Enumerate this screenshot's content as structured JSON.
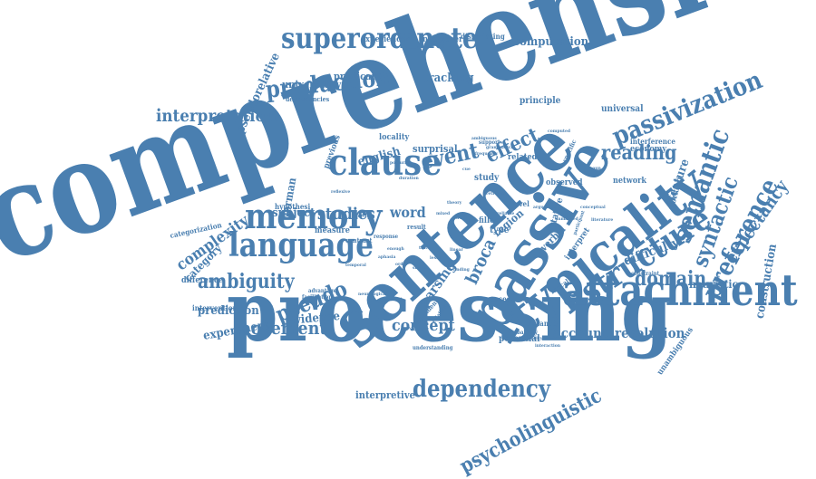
{
  "colors": {
    "word": "#4a7fb0",
    "background": "#ffffff"
  },
  "words": {
    "comprehension": "comprehension",
    "processing": "processing",
    "sentence": "sentence",
    "passive": "passive",
    "typicality": "typicality",
    "attachment": "attachment",
    "memory": "memory",
    "language": "language",
    "clause": "clause",
    "superordinate": "superordinate",
    "structure": "structure",
    "dependency": "dependency",
    "passivization": "passivization",
    "semantic": "semantic",
    "syntactic": "syntactic",
    "preference": "preference",
    "expectancy": "expectancy",
    "production": "production",
    "interpretation": "interpretation",
    "reading": "reading",
    "event": "event",
    "effect": "effect",
    "ambiguity": "ambiguity",
    "pseudo": "pseudo",
    "movement": "movement",
    "concept": "concept",
    "domain": "domain",
    "psycholinguistic": "psycholinguistic",
    "broca": "broca",
    "region": "region",
    "account": "account",
    "resolution": "resolution",
    "complexity": "complexity",
    "category": "category",
    "studies": "studies",
    "subject": "subject",
    "word": "word",
    "parsing": "parsing",
    "prediction": "prediction",
    "experiment": "experiment",
    "evidence": "evidence",
    "construction": "construction",
    "difficulty": "difficulty",
    "heuristic": "heuristic",
    "feature": "feature",
    "computation": "computation",
    "tracking": "tracking",
    "universality": "universality",
    "predicate": "predicate",
    "pseudorelative": "pseudorelative",
    "experiencer": "experiencer",
    "intervener": "intervener",
    "dissociating": "dissociating",
    "principle": "principle",
    "universal": "universal",
    "interference": "interference",
    "economy": "economy",
    "network": "network",
    "working": "working",
    "interpretive": "interpretive",
    "potential": "potential",
    "unambiguous": "unambiguous",
    "english": "english",
    "german": "german",
    "surprisal": "surprisal",
    "related": "related",
    "study": "study",
    "locality": "locality",
    "categorization": "categorization",
    "difference": "difference",
    "intervention": "intervention",
    "measure": "measure",
    "hypothesis": "hypothesi",
    "facilitation": "facilitation",
    "advantage": "advantage",
    "verbal": "verbal",
    "interpret": "interpret",
    "observed": "observed",
    "type": "type",
    "level": "level",
    "paced": "paced",
    "stative": "stative",
    "distance": "distance",
    "probability": "probability",
    "previous": "previous",
    "dependencies": "dependencies",
    "support": "support",
    "contrast": "contrast",
    "response": "response",
    "filler": "filler",
    "result": "result",
    "self": "self",
    "independent": "independent",
    "understanding": "understanding",
    "neurological": "neurological",
    "constraint": "constraint",
    "lexical": "lexical",
    "acceptability": "acceptability",
    "literature": "literature",
    "specific": "specific",
    "interaction": "interaction",
    "similarities": "similarities",
    "mixed": "mixed",
    "relative": "relative",
    "unmarked": "unmarked",
    "retrieval": "retrieval",
    "duration": "duration",
    "postural": "postural",
    "computed": "computed",
    "ambiguous": "ambiguous",
    "frequency": "frequency",
    "grammatical": "grammatical",
    "enough": "enough",
    "finding": "finding",
    "lesion": "lesion",
    "status": "status",
    "argument": "argument",
    "reflexive": "reflexive",
    "reliable": "reliable",
    "phrase": "phrase",
    "theory": "theory",
    "cue": "cue",
    "conceptual": "conceptual",
    "participant": "participant",
    "aphasia": "aphasia",
    "trace": "trace",
    "order": "order",
    "noun": "noun",
    "temporal": "temporal",
    "linear": "linear"
  }
}
